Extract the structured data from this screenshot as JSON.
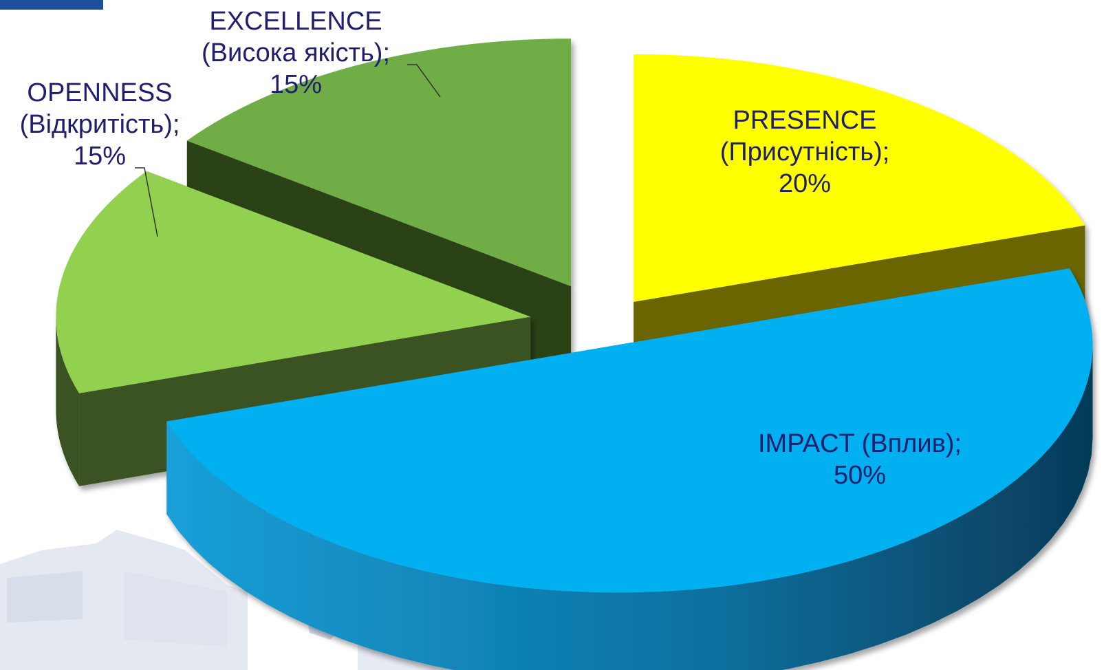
{
  "chart_data": {
    "type": "pie",
    "title": "",
    "legend": "none",
    "three_d": true,
    "exploded": true,
    "slices": [
      {
        "name": "PRESENCE",
        "name_local": "(Присутність);",
        "value": 20,
        "value_label": "20%",
        "color": "#ffff00",
        "side_color": "#6b6500"
      },
      {
        "name": "IMPACT (Вплив);",
        "name_local": "",
        "value": 50,
        "value_label": "50%",
        "color": "#00b0f0",
        "side_color": "#0a7cb0"
      },
      {
        "name": "OPENNESS",
        "name_local": "(Відкритість);",
        "value": 15,
        "value_label": "15%",
        "color": "#92d050",
        "side_color": "#3b5220"
      },
      {
        "name": "EXCELLENCE",
        "name_local": "(Висока якість);",
        "value": 15,
        "value_label": "15%",
        "color": "#70ad47",
        "side_color": "#2b4219"
      }
    ]
  },
  "colors": {
    "label_text": "#1f1f6e",
    "corner_block": "#1f4e9a",
    "watermark": "#b8c4d8"
  },
  "decorations": {
    "corner_block": "blue-rectangle",
    "watermark": "university-building-sketch"
  }
}
